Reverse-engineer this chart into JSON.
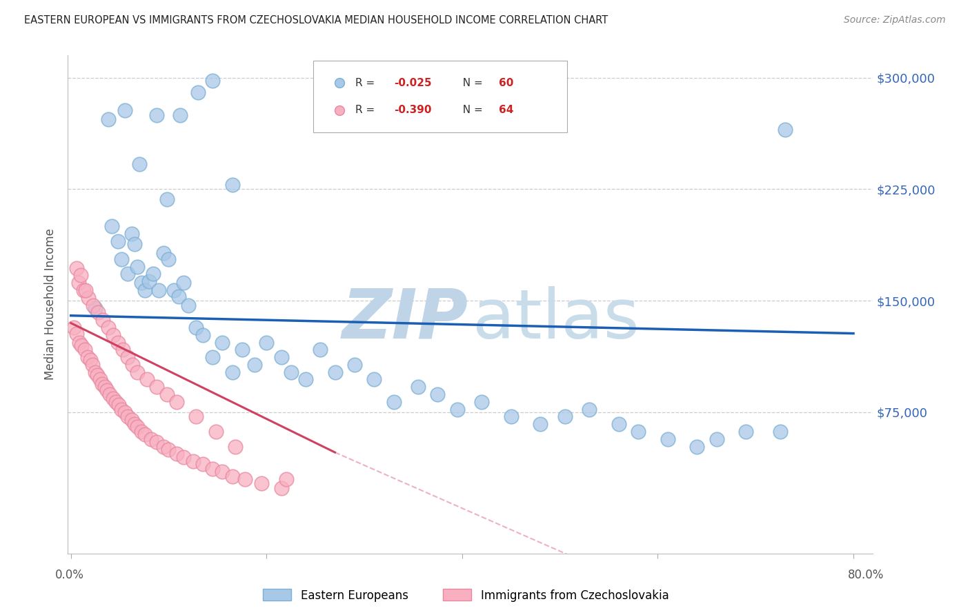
{
  "title": "EASTERN EUROPEAN VS IMMIGRANTS FROM CZECHOSLOVAKIA MEDIAN HOUSEHOLD INCOME CORRELATION CHART",
  "source": "Source: ZipAtlas.com",
  "ylabel": "Median Household Income",
  "ymin": -20000,
  "ymax": 315000,
  "xmin": -0.003,
  "xmax": 0.82,
  "blue_R": -0.025,
  "blue_N": 60,
  "pink_R": -0.39,
  "pink_N": 64,
  "blue_color": "#a8c8e8",
  "blue_edge": "#7bafd4",
  "pink_color": "#f8b0c0",
  "pink_edge": "#e888a0",
  "blue_line_color": "#1a5fb4",
  "pink_line_color": "#d04060",
  "watermark_color": "#cddcec",
  "title_color": "#222222",
  "axis_label_color": "#3366bb",
  "grid_color": "#cccccc",
  "blue_scatter_x": [
    0.025,
    0.042,
    0.048,
    0.052,
    0.058,
    0.062,
    0.065,
    0.068,
    0.072,
    0.076,
    0.08,
    0.084,
    0.09,
    0.095,
    0.1,
    0.105,
    0.11,
    0.115,
    0.12,
    0.128,
    0.135,
    0.145,
    0.155,
    0.165,
    0.175,
    0.188,
    0.2,
    0.215,
    0.225,
    0.24,
    0.255,
    0.27,
    0.29,
    0.31,
    0.33,
    0.355,
    0.375,
    0.395,
    0.42,
    0.45,
    0.48,
    0.505,
    0.53,
    0.56,
    0.58,
    0.61,
    0.64,
    0.66,
    0.69,
    0.725,
    0.038,
    0.055,
    0.07,
    0.088,
    0.098,
    0.112,
    0.13,
    0.145,
    0.165,
    0.73
  ],
  "blue_scatter_y": [
    145000,
    200000,
    190000,
    178000,
    168000,
    195000,
    188000,
    173000,
    162000,
    157000,
    163000,
    168000,
    157000,
    182000,
    178000,
    157000,
    153000,
    162000,
    147000,
    132000,
    127000,
    112000,
    122000,
    102000,
    117000,
    107000,
    122000,
    112000,
    102000,
    97000,
    117000,
    102000,
    107000,
    97000,
    82000,
    92000,
    87000,
    77000,
    82000,
    72000,
    67000,
    72000,
    77000,
    67000,
    62000,
    57000,
    52000,
    57000,
    62000,
    62000,
    272000,
    278000,
    242000,
    275000,
    218000,
    275000,
    290000,
    298000,
    228000,
    265000
  ],
  "pink_scatter_x": [
    0.003,
    0.006,
    0.009,
    0.011,
    0.014,
    0.017,
    0.02,
    0.022,
    0.025,
    0.027,
    0.03,
    0.032,
    0.035,
    0.037,
    0.04,
    0.043,
    0.046,
    0.049,
    0.052,
    0.055,
    0.058,
    0.062,
    0.065,
    0.068,
    0.072,
    0.076,
    0.082,
    0.088,
    0.095,
    0.1,
    0.108,
    0.115,
    0.125,
    0.135,
    0.145,
    0.155,
    0.165,
    0.178,
    0.195,
    0.215,
    0.008,
    0.013,
    0.018,
    0.023,
    0.028,
    0.033,
    0.038,
    0.043,
    0.048,
    0.053,
    0.058,
    0.063,
    0.068,
    0.078,
    0.088,
    0.098,
    0.108,
    0.128,
    0.148,
    0.168,
    0.006,
    0.01,
    0.015,
    0.22
  ],
  "pink_scatter_y": [
    132000,
    128000,
    122000,
    120000,
    117000,
    112000,
    110000,
    107000,
    102000,
    100000,
    97000,
    94000,
    92000,
    90000,
    87000,
    84000,
    82000,
    80000,
    77000,
    75000,
    72000,
    70000,
    67000,
    65000,
    62000,
    60000,
    57000,
    55000,
    52000,
    50000,
    47000,
    45000,
    42000,
    40000,
    37000,
    35000,
    32000,
    30000,
    27000,
    24000,
    162000,
    157000,
    152000,
    147000,
    142000,
    137000,
    132000,
    127000,
    122000,
    117000,
    112000,
    107000,
    102000,
    97000,
    92000,
    87000,
    82000,
    72000,
    62000,
    52000,
    172000,
    167000,
    157000,
    30000
  ]
}
